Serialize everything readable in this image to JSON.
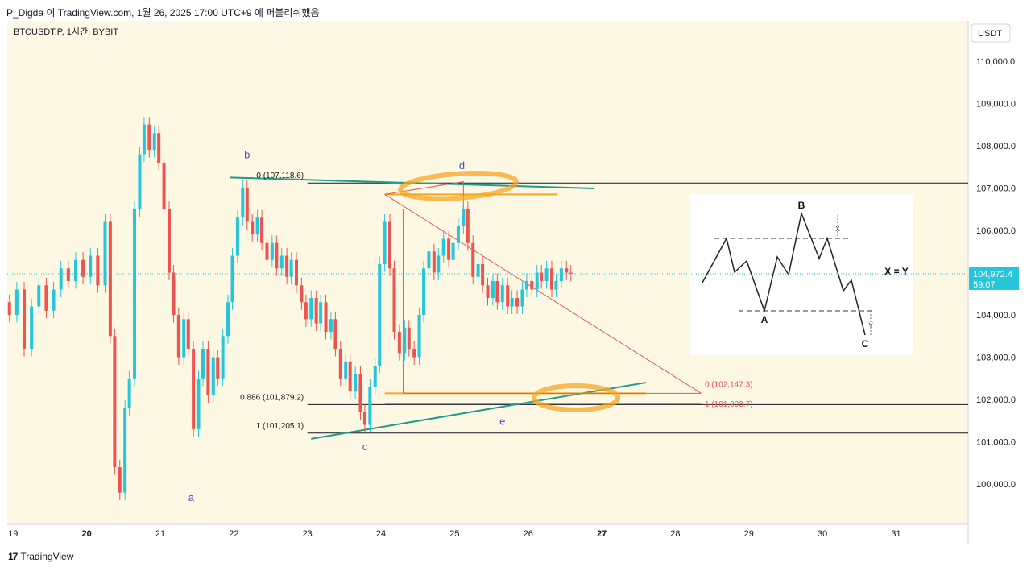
{
  "header": {
    "publish_line": "P_Digda 이 TradingView.com, 1월 26, 2025 17:00 UTC+9 에 퍼블리쉬했음"
  },
  "footer": {
    "brand": "TradingView",
    "logo_glyph": "17"
  },
  "colors": {
    "background": "#fdf8e4",
    "up": "#26c6da",
    "down": "#ef5350",
    "teal_line": "#1e9c88",
    "orange": "#f5a623",
    "fib_red": "#e05a5a",
    "price_badge": "#26c6da"
  },
  "chart_data": {
    "type": "candlestick",
    "symbol_label": "BTCUSDT.P, 1시간, BYBIT",
    "currency_label": "USDT",
    "y_ticks": [
      "110,000.0",
      "109,000.0",
      "108,000.0",
      "107,000.0",
      "106,000.0",
      "105,000.0",
      "104,000.0",
      "103,000.0",
      "102,000.0",
      "101,000.0",
      "100,000.0"
    ],
    "y_tick_values": [
      110000,
      109000,
      108000,
      107000,
      106000,
      105000,
      104000,
      103000,
      102000,
      101000,
      100000
    ],
    "ylim": [
      99050,
      110950
    ],
    "x_ticks": [
      "19",
      "20",
      "21",
      "22",
      "23",
      "24",
      "25",
      "26",
      "27",
      "28",
      "29",
      "30",
      "31"
    ],
    "x_tick_bold": [
      "20",
      "27"
    ],
    "xlim": [
      18.92,
      31.98
    ],
    "current_price": {
      "value": 104972.4,
      "label": "104,972.4",
      "countdown": "59:07"
    },
    "candles": [
      {
        "d": 18.95,
        "o": 104300,
        "c": 104000
      },
      {
        "d": 19.05,
        "o": 104000,
        "c": 104600
      },
      {
        "d": 19.15,
        "o": 104600,
        "c": 103200
      },
      {
        "d": 19.25,
        "o": 103200,
        "c": 104200
      },
      {
        "d": 19.35,
        "o": 104200,
        "c": 104700
      },
      {
        "d": 19.45,
        "o": 104700,
        "c": 104100
      },
      {
        "d": 19.55,
        "o": 104100,
        "c": 104600
      },
      {
        "d": 19.65,
        "o": 104600,
        "c": 105100
      },
      {
        "d": 19.75,
        "o": 105100,
        "c": 104800
      },
      {
        "d": 19.85,
        "o": 104800,
        "c": 105300
      },
      {
        "d": 19.95,
        "o": 105300,
        "c": 104900
      },
      {
        "d": 20.05,
        "o": 104900,
        "c": 105400
      },
      {
        "d": 20.15,
        "o": 105400,
        "c": 104700
      },
      {
        "d": 20.25,
        "o": 104700,
        "c": 106200
      },
      {
        "d": 20.32,
        "o": 106200,
        "c": 103500
      },
      {
        "d": 20.38,
        "o": 103500,
        "c": 100400
      },
      {
        "d": 20.45,
        "o": 100400,
        "c": 99800
      },
      {
        "d": 20.52,
        "o": 99800,
        "c": 101800
      },
      {
        "d": 20.58,
        "o": 101800,
        "c": 102500
      },
      {
        "d": 20.65,
        "o": 102500,
        "c": 106500
      },
      {
        "d": 20.72,
        "o": 106500,
        "c": 107800
      },
      {
        "d": 20.78,
        "o": 107800,
        "c": 108500
      },
      {
        "d": 20.85,
        "o": 108500,
        "c": 107900
      },
      {
        "d": 20.92,
        "o": 107900,
        "c": 108300
      },
      {
        "d": 20.98,
        "o": 108300,
        "c": 107600
      },
      {
        "d": 21.05,
        "o": 107600,
        "c": 106500
      },
      {
        "d": 21.12,
        "o": 106500,
        "c": 105000
      },
      {
        "d": 21.18,
        "o": 105000,
        "c": 104000
      },
      {
        "d": 21.25,
        "o": 104000,
        "c": 103000
      },
      {
        "d": 21.32,
        "o": 103000,
        "c": 103900
      },
      {
        "d": 21.38,
        "o": 103900,
        "c": 103200
      },
      {
        "d": 21.45,
        "o": 103200,
        "c": 101300
      },
      {
        "d": 21.52,
        "o": 101300,
        "c": 102500
      },
      {
        "d": 21.58,
        "o": 102500,
        "c": 103200
      },
      {
        "d": 21.65,
        "o": 103200,
        "c": 102100
      },
      {
        "d": 21.72,
        "o": 102100,
        "c": 103000
      },
      {
        "d": 21.78,
        "o": 103000,
        "c": 102500
      },
      {
        "d": 21.85,
        "o": 102500,
        "c": 103500
      },
      {
        "d": 21.92,
        "o": 103500,
        "c": 104300
      },
      {
        "d": 21.98,
        "o": 104300,
        "c": 105400
      },
      {
        "d": 22.05,
        "o": 105400,
        "c": 106300
      },
      {
        "d": 22.12,
        "o": 106300,
        "c": 107000
      },
      {
        "d": 22.18,
        "o": 107000,
        "c": 106200
      },
      {
        "d": 22.25,
        "o": 106200,
        "c": 105900
      },
      {
        "d": 22.32,
        "o": 105900,
        "c": 106300
      },
      {
        "d": 22.38,
        "o": 106300,
        "c": 105700
      },
      {
        "d": 22.45,
        "o": 105700,
        "c": 105300
      },
      {
        "d": 22.52,
        "o": 105300,
        "c": 105700
      },
      {
        "d": 22.58,
        "o": 105700,
        "c": 105100
      },
      {
        "d": 22.65,
        "o": 105100,
        "c": 105400
      },
      {
        "d": 22.72,
        "o": 105400,
        "c": 104900
      },
      {
        "d": 22.78,
        "o": 104900,
        "c": 105300
      },
      {
        "d": 22.85,
        "o": 105300,
        "c": 104700
      },
      {
        "d": 22.92,
        "o": 104700,
        "c": 104300
      },
      {
        "d": 22.98,
        "o": 104300,
        "c": 103900
      },
      {
        "d": 23.05,
        "o": 103900,
        "c": 104400
      },
      {
        "d": 23.12,
        "o": 104400,
        "c": 103800
      },
      {
        "d": 23.18,
        "o": 103800,
        "c": 104300
      },
      {
        "d": 23.25,
        "o": 104300,
        "c": 103600
      },
      {
        "d": 23.32,
        "o": 103600,
        "c": 103900
      },
      {
        "d": 23.38,
        "o": 103900,
        "c": 103200
      },
      {
        "d": 23.45,
        "o": 103200,
        "c": 102500
      },
      {
        "d": 23.52,
        "o": 102500,
        "c": 102900
      },
      {
        "d": 23.58,
        "o": 102900,
        "c": 102200
      },
      {
        "d": 23.65,
        "o": 102200,
        "c": 102600
      },
      {
        "d": 23.72,
        "o": 102600,
        "c": 101700
      },
      {
        "d": 23.78,
        "o": 101700,
        "c": 101400
      },
      {
        "d": 23.85,
        "o": 101400,
        "c": 102300
      },
      {
        "d": 23.92,
        "o": 102300,
        "c": 102800
      },
      {
        "d": 23.98,
        "o": 102800,
        "c": 105200
      },
      {
        "d": 24.05,
        "o": 105200,
        "c": 106200
      },
      {
        "d": 24.12,
        "o": 106200,
        "c": 105100
      },
      {
        "d": 24.18,
        "o": 105100,
        "c": 103600
      },
      {
        "d": 24.25,
        "o": 103600,
        "c": 103100
      },
      {
        "d": 24.32,
        "o": 103100,
        "c": 103700
      },
      {
        "d": 24.38,
        "o": 103700,
        "c": 103200
      },
      {
        "d": 24.45,
        "o": 103200,
        "c": 103000
      },
      {
        "d": 24.52,
        "o": 103000,
        "c": 104000
      },
      {
        "d": 24.58,
        "o": 104000,
        "c": 105100
      },
      {
        "d": 24.65,
        "o": 105100,
        "c": 105500
      },
      {
        "d": 24.72,
        "o": 105500,
        "c": 105000
      },
      {
        "d": 24.78,
        "o": 105000,
        "c": 105400
      },
      {
        "d": 24.85,
        "o": 105400,
        "c": 105800
      },
      {
        "d": 24.92,
        "o": 105800,
        "c": 105300
      },
      {
        "d": 24.98,
        "o": 105300,
        "c": 105700
      },
      {
        "d": 25.05,
        "o": 105700,
        "c": 106100
      },
      {
        "d": 25.12,
        "o": 106100,
        "c": 106500
      },
      {
        "d": 25.18,
        "o": 106500,
        "c": 105700
      },
      {
        "d": 25.25,
        "o": 105700,
        "c": 104900
      },
      {
        "d": 25.32,
        "o": 104900,
        "c": 105200
      },
      {
        "d": 25.38,
        "o": 105200,
        "c": 104700
      },
      {
        "d": 25.45,
        "o": 104700,
        "c": 104400
      },
      {
        "d": 25.52,
        "o": 104400,
        "c": 104800
      },
      {
        "d": 25.58,
        "o": 104800,
        "c": 104300
      },
      {
        "d": 25.65,
        "o": 104300,
        "c": 104700
      },
      {
        "d": 25.72,
        "o": 104700,
        "c": 104200
      },
      {
        "d": 25.78,
        "o": 104200,
        "c": 104400
      },
      {
        "d": 25.85,
        "o": 104400,
        "c": 104200
      },
      {
        "d": 25.92,
        "o": 104200,
        "c": 104600
      },
      {
        "d": 25.98,
        "o": 104600,
        "c": 104800
      },
      {
        "d": 26.05,
        "o": 104800,
        "c": 104600
      },
      {
        "d": 26.12,
        "o": 104600,
        "c": 105000
      },
      {
        "d": 26.18,
        "o": 105000,
        "c": 104800
      },
      {
        "d": 26.25,
        "o": 104800,
        "c": 105100
      },
      {
        "d": 26.32,
        "o": 105100,
        "c": 104600
      },
      {
        "d": 26.38,
        "o": 104600,
        "c": 104800
      },
      {
        "d": 26.45,
        "o": 104800,
        "c": 105100
      },
      {
        "d": 26.52,
        "o": 105100,
        "c": 105000
      },
      {
        "d": 26.58,
        "o": 105000,
        "c": 104970
      }
    ],
    "annotations": {
      "wave_labels": [
        {
          "text": "a",
          "d": 21.42,
          "p": 99600
        },
        {
          "text": "b",
          "d": 22.18,
          "p": 107700
        },
        {
          "text": "c",
          "d": 23.78,
          "p": 100800
        },
        {
          "text": "d",
          "d": 25.1,
          "p": 107450
        },
        {
          "text": "e",
          "d": 25.65,
          "p": 101400
        }
      ],
      "fib_left": [
        {
          "label": "0 (107,118.6)",
          "value": 107118.6
        },
        {
          "label": "0.886 (101,879.2)",
          "value": 101879.2
        },
        {
          "label": "1 (101,205.1)",
          "value": 101205.1
        }
      ],
      "fib_right": [
        {
          "label": "0 (102,147.3)",
          "value": 102147.3
        },
        {
          "label": "1 (101,903.7)",
          "value": 101903.7
        }
      ],
      "inset": {
        "labels": [
          "B",
          "A",
          "C"
        ],
        "measure_labels": [
          "X",
          "Y"
        ],
        "equation": "X = Y"
      }
    }
  }
}
